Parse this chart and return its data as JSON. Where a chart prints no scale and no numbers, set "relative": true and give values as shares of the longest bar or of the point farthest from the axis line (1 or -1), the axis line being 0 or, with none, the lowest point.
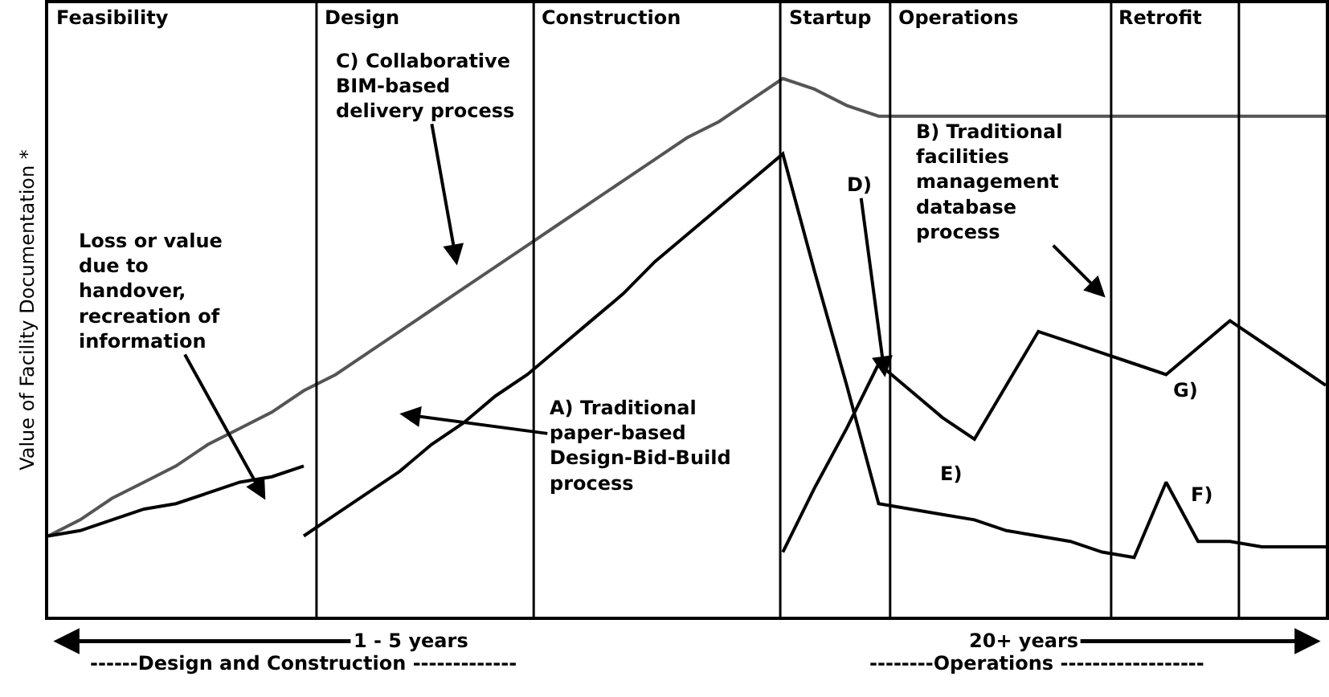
{
  "chart_data": {
    "type": "line",
    "ylabel": "Value of Facility Documentation *",
    "relative": true,
    "marker": "none",
    "line_style": "solid",
    "categories": [
      null,
      null,
      null,
      null,
      null,
      null,
      null,
      null,
      null,
      null,
      null,
      null,
      null,
      null,
      null,
      null,
      null,
      null,
      null,
      null,
      null,
      null,
      null,
      null,
      null,
      null,
      null,
      null,
      null,
      null,
      null,
      null,
      null,
      null,
      null,
      null,
      null,
      null,
      null,
      null,
      null
    ],
    "series": [
      {
        "color": "#555555",
        "values": [
          0.15,
          0.18,
          0.22,
          0.25,
          0.28,
          0.32,
          0.35,
          0.38,
          0.42,
          0.45,
          0.49,
          0.53,
          0.57,
          0.61,
          0.65,
          0.69,
          0.73,
          0.77,
          0.81,
          0.85,
          0.89,
          0.92,
          0.96,
          1.0,
          0.98,
          0.95,
          0.93,
          0.93,
          0.93,
          0.93,
          0.93,
          0.93,
          0.93,
          0.93,
          0.93,
          0.93,
          0.93,
          0.93,
          0.93,
          0.93,
          0.93
        ]
      },
      {
        "color": "#000000",
        "values": [
          0.15,
          0.16,
          0.18,
          0.2,
          0.21,
          0.23,
          0.25,
          0.26,
          0.28,
          null,
          null,
          null,
          null,
          null,
          null,
          null,
          null,
          null,
          null,
          null,
          null,
          null,
          null,
          null,
          null,
          null,
          null,
          null,
          null,
          null,
          null,
          null,
          null,
          null,
          null,
          null,
          null,
          null,
          null,
          null,
          null
        ]
      },
      {
        "color": "#000000",
        "values": [
          null,
          null,
          null,
          null,
          null,
          null,
          null,
          null,
          0.15,
          0.19,
          0.23,
          0.27,
          0.32,
          0.36,
          0.41,
          0.45,
          0.5,
          0.55,
          0.6,
          0.66,
          0.71,
          0.76,
          0.81,
          0.86,
          0.64,
          0.43,
          0.21,
          0.2,
          0.19,
          0.18,
          0.16,
          0.15,
          0.14,
          0.12,
          0.11,
          0.25,
          0.14,
          0.14,
          0.13,
          0.13,
          0.13
        ]
      },
      {
        "color": "#000000",
        "values": [
          null,
          null,
          null,
          null,
          null,
          null,
          null,
          null,
          null,
          null,
          null,
          null,
          null,
          null,
          null,
          null,
          null,
          null,
          null,
          null,
          null,
          null,
          null,
          0.12,
          0.24,
          0.35,
          0.47,
          0.42,
          0.37,
          0.33,
          0.43,
          0.53,
          0.51,
          0.49,
          0.47,
          0.45,
          0.5,
          0.55,
          0.51,
          0.47,
          0.43
        ]
      }
    ],
    "annotations": [
      "Feasibility",
      "Design",
      "Construction",
      "Startup",
      "Operations",
      "Retrofit",
      "Loss or value due to handover, recreation of information",
      "C) Collaborative BIM-based delivery process",
      "A) Traditional paper-based Design-Bid-Build process",
      "B) Traditional facilities management database process",
      "D)",
      "E)",
      "F)",
      "G)",
      "1 - 5 years",
      "20+ years",
      "------Design and Construction -------------",
      "--------Operations ------------------"
    ]
  }
}
